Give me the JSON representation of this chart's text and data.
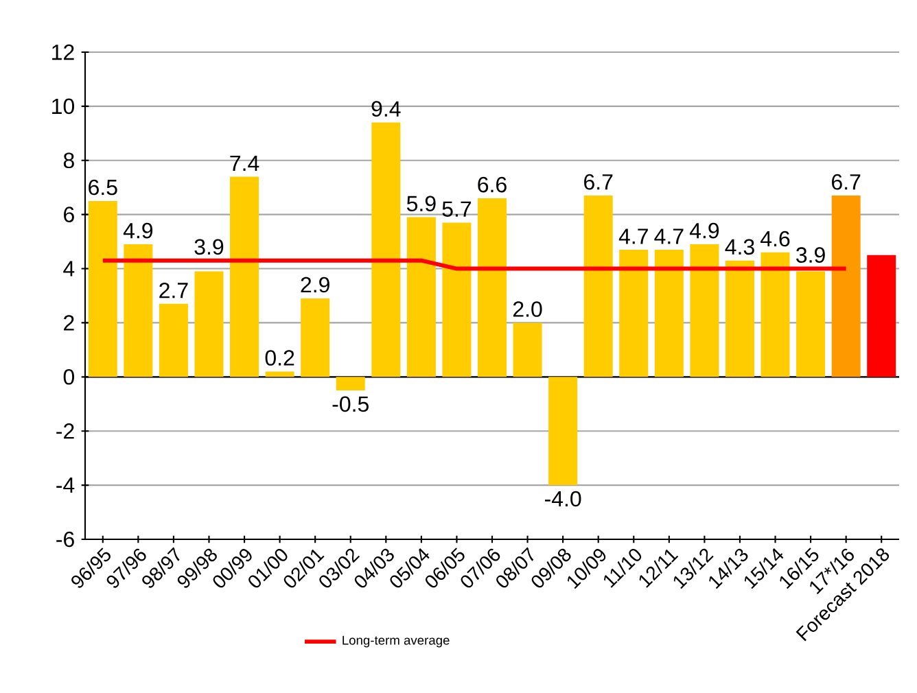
{
  "chart_data": {
    "type": "bar",
    "categories": [
      "96/95",
      "97/96",
      "98/97",
      "99/98",
      "00/99",
      "01/00",
      "02/01",
      "03/02",
      "04/03",
      "05/04",
      "06/05",
      "07/06",
      "08/07",
      "09/08",
      "10/09",
      "11/10",
      "12/11",
      "13/12",
      "14/13",
      "15/14",
      "16/15",
      "17*/16",
      "Forecast 2018"
    ],
    "values": [
      6.5,
      4.9,
      2.7,
      3.9,
      7.4,
      0.2,
      2.9,
      -0.5,
      9.4,
      5.9,
      5.7,
      6.6,
      2.0,
      -4.0,
      6.7,
      4.7,
      4.7,
      4.9,
      4.3,
      4.6,
      3.9,
      6.7,
      4.5
    ],
    "value_labels": [
      "6.5",
      "4.9",
      "2.7",
      "3.9",
      "7.4",
      "0.2",
      "2.9",
      "-0.5",
      "9.4",
      "5.9",
      "5.7",
      "6.6",
      "2.0",
      "-4.0",
      "6.7",
      "4.7",
      "4.7",
      "4.9",
      "4.3",
      "4.6",
      "3.9",
      "6.7",
      null
    ],
    "colors": [
      "#ffcc00",
      "#ffcc00",
      "#ffcc00",
      "#ffcc00",
      "#ffcc00",
      "#ffcc00",
      "#ffcc00",
      "#ffcc00",
      "#ffcc00",
      "#ffcc00",
      "#ffcc00",
      "#ffcc00",
      "#ffcc00",
      "#ffcc00",
      "#ffcc00",
      "#ffcc00",
      "#ffcc00",
      "#ffcc00",
      "#ffcc00",
      "#ffcc00",
      "#ffcc00",
      "#ff9900",
      "#ff0000"
    ],
    "series": [
      {
        "type": "line",
        "name": "Long-term average",
        "color": "#ff0000",
        "values": [
          4.3,
          4.3,
          4.3,
          4.3,
          4.3,
          4.3,
          4.3,
          4.3,
          4.3,
          4.3,
          4.0,
          4.0,
          4.0,
          4.0,
          4.0,
          4.0,
          4.0,
          4.0,
          4.0,
          4.0,
          4.0,
          4.0,
          null
        ]
      }
    ],
    "ylim": [
      -6,
      12
    ],
    "yticks": [
      -6,
      -4,
      -2,
      0,
      2,
      4,
      6,
      8,
      10,
      12
    ],
    "grid": "y",
    "legend": "bottom"
  }
}
